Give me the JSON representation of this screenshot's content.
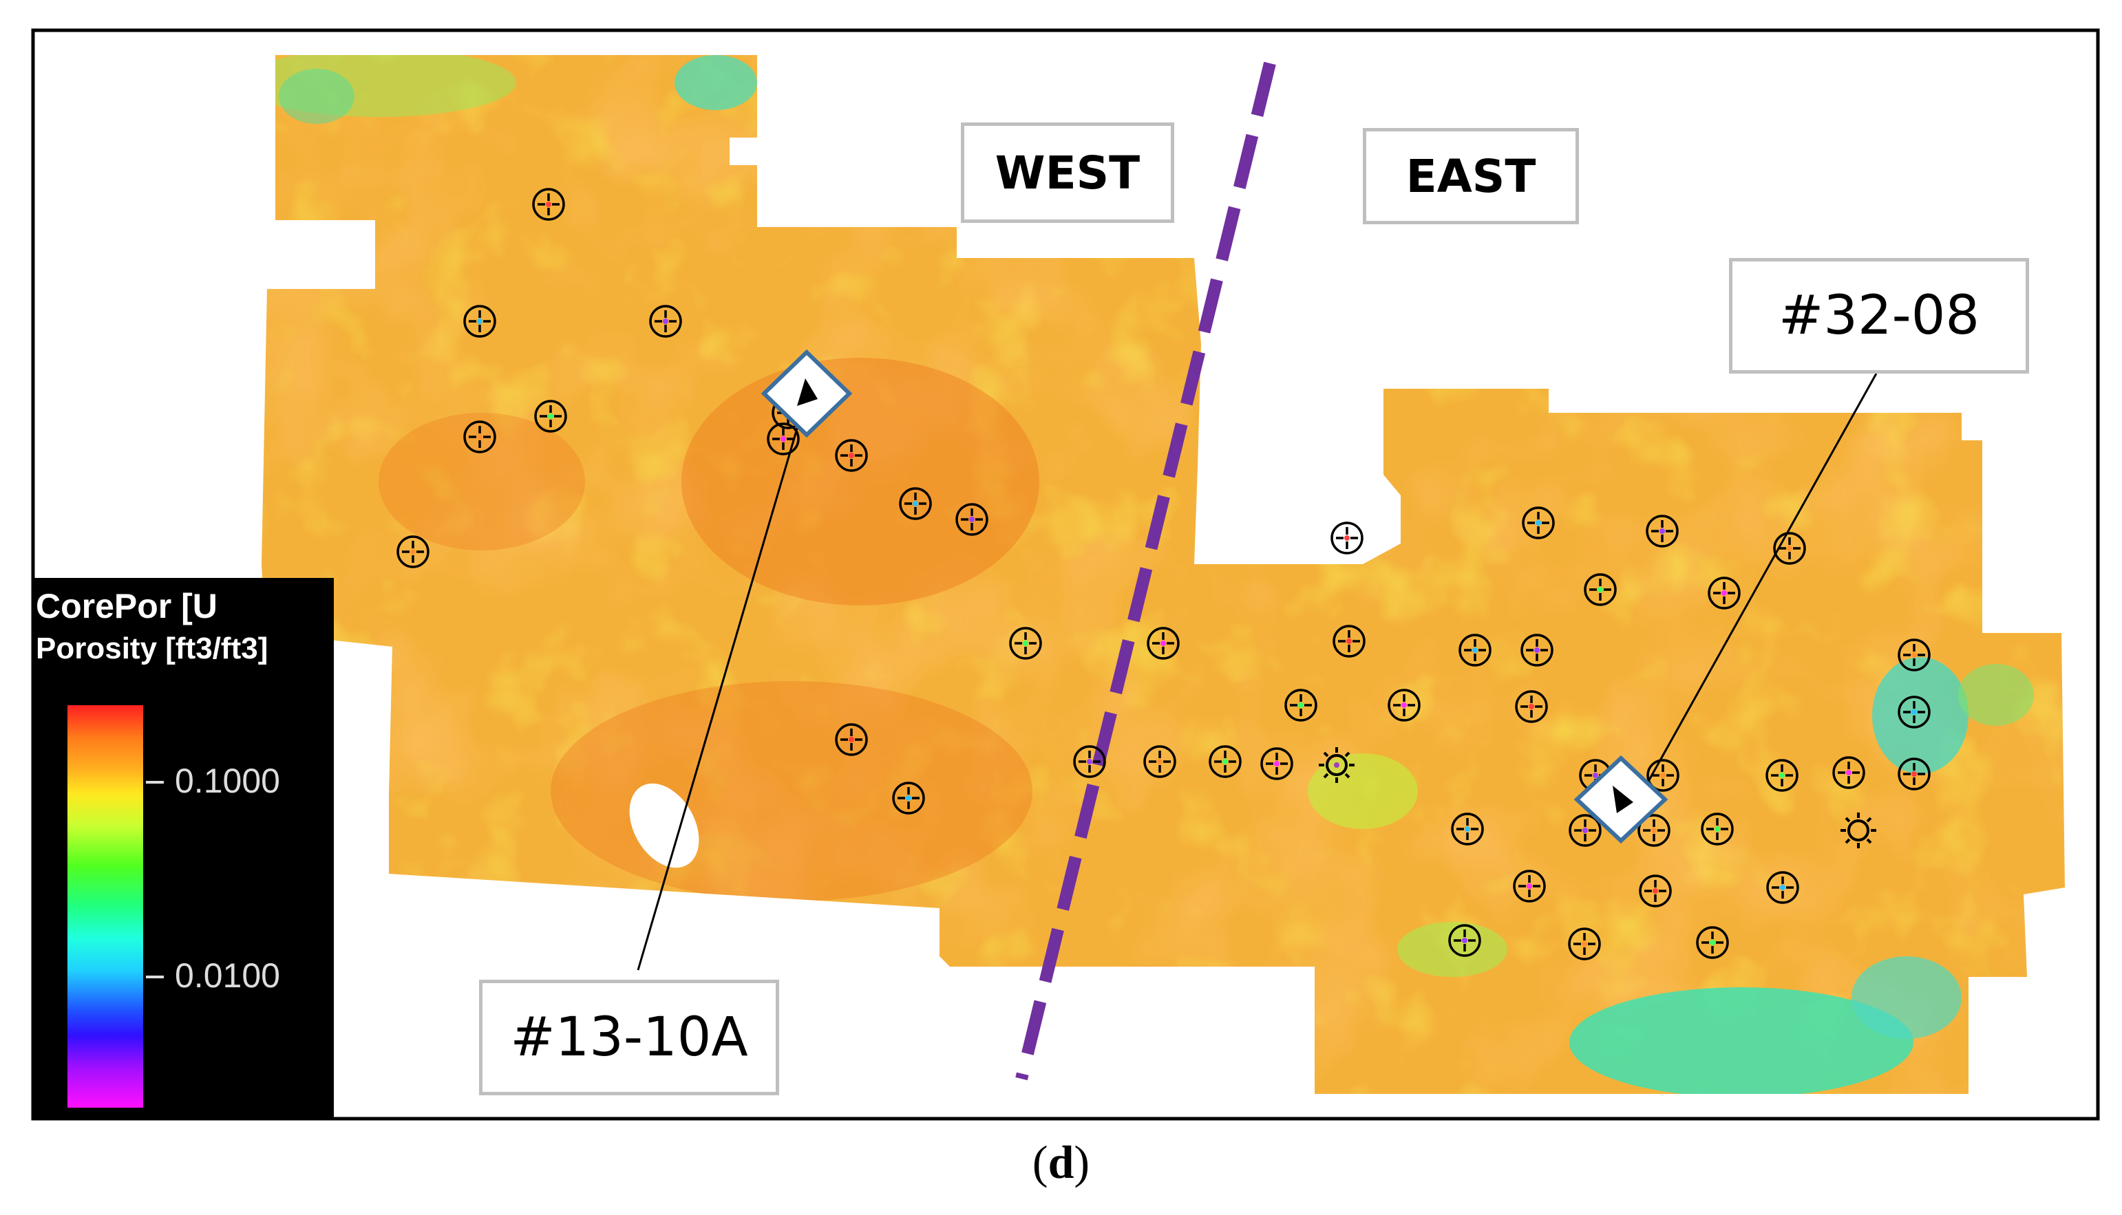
{
  "regions": {
    "west_label": "WEST",
    "east_label": "EAST"
  },
  "wells": {
    "highlighted": [
      {
        "name": "#32-08"
      },
      {
        "name": "#13-10A"
      }
    ]
  },
  "legend": {
    "title_line1": "CorePor [U",
    "title_line2": "Porosity [ft3/ft3]",
    "ticks": [
      "0.1000",
      "0.0100"
    ]
  },
  "caption": {
    "open": "(",
    "letter": "d",
    "close": ")"
  },
  "colors": {
    "fault_line": "#7030a0",
    "map_base": "#f6a636",
    "frame": "#000000",
    "label_border": "#bfbfbf"
  },
  "icons": {
    "well_marker": "crosshair-circle-icon",
    "highlight_marker": "diamond-arrow-icon",
    "special_marker": "sun-icon"
  }
}
